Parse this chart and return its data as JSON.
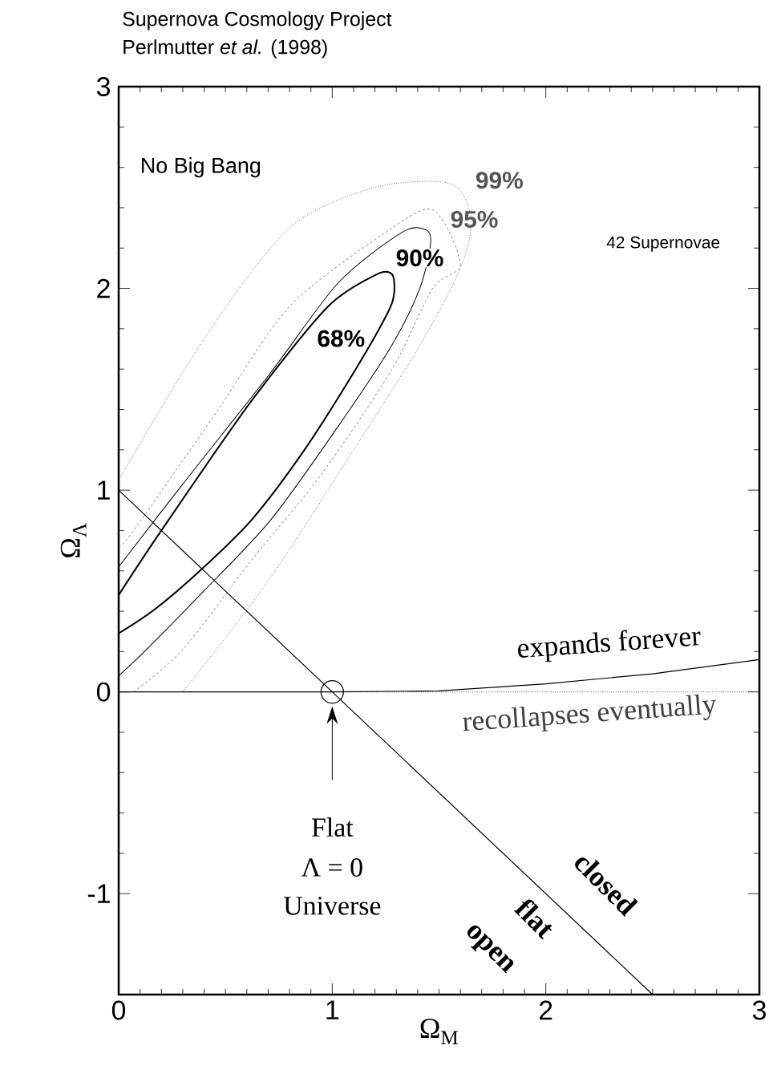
{
  "chart_data": {
    "type": "line",
    "title": "Supernova Cosmology Project",
    "subtitle": "Perlmutter *et al.* (1998)",
    "xlabel": "Ω$_{M}$",
    "ylabel": "Ω$_{Λ}$",
    "xlim": [
      0,
      3
    ],
    "ylim": [
      -1.5,
      3
    ],
    "xticks": [
      0,
      1,
      2,
      3
    ],
    "yticks": [
      -1,
      0,
      1,
      2,
      3
    ],
    "grid": false,
    "series": [
      {
        "name": "68%",
        "color": "#000000",
        "line_style": "solid",
        "x": [
          0,
          0.2,
          0.62,
          0.98,
          1.21,
          1.28,
          1.29,
          1.26,
          1.11,
          0.87,
          0.62,
          0.38,
          0.17,
          0
        ],
        "values": [
          0.48,
          0.8,
          1.44,
          1.91,
          2.07,
          2.07,
          1.98,
          1.88,
          1.6,
          1.2,
          0.85,
          0.6,
          0.41,
          0.29
        ]
      },
      {
        "name": "90%",
        "color": "#000000",
        "line_style": "solid",
        "x": [
          0,
          0.3,
          0.71,
          1.03,
          1.33,
          1.44,
          1.46,
          1.41,
          1.28,
          1.03,
          0.71,
          0.38,
          0.13,
          0
        ],
        "values": [
          0.62,
          1.03,
          1.58,
          2.03,
          2.28,
          2.29,
          2.22,
          2.0,
          1.72,
          1.32,
          0.85,
          0.48,
          0.21,
          0.08
        ]
      },
      {
        "name": "95%",
        "color": "#555555",
        "line_style": "dashed",
        "x": [
          0,
          0.07,
          0.46,
          0.8,
          1.24,
          1.47,
          1.6,
          1.47,
          1.28,
          0.95,
          0.62,
          0.3,
          0.07
        ],
        "values": [
          0.72,
          0.8,
          1.39,
          1.91,
          2.27,
          2.39,
          2.12,
          2.0,
          1.6,
          1.08,
          0.65,
          0.21,
          0
        ]
      },
      {
        "name": "99%",
        "color": "#555555",
        "line_style": "dotted",
        "x": [
          0,
          0.4,
          0.8,
          1.2,
          1.55,
          1.65,
          1.6,
          1.4,
          1.1,
          0.7,
          0.3
        ],
        "values": [
          1.05,
          1.75,
          2.3,
          2.5,
          2.52,
          2.35,
          2.1,
          1.7,
          1.2,
          0.55,
          0
        ]
      },
      {
        "color": "#000000",
        "line_style": "solid",
        "x": [
          0,
          2.5
        ],
        "values": [
          1,
          -1.5
        ]
      },
      {
        "color": "#000000",
        "line_style": "solid",
        "x": [
          0,
          1,
          1.5,
          2,
          2.5,
          3
        ],
        "values": [
          0,
          0,
          0.005,
          0.04,
          0.09,
          0.16
        ]
      },
      {
        "type": "scatter",
        "marker": "circle",
        "color": "#000000",
        "x": [
          1
        ],
        "values": [
          0
        ]
      }
    ],
    "ref_lines": [
      {
        "axis": "y",
        "value": 0,
        "line_style": "dotted",
        "color": "#000000"
      }
    ],
    "annotations": [
      "No Big Bang",
      "42 Supernovae",
      "expands forever",
      "recollapses eventually",
      "closed",
      "flat",
      "open",
      "Flat",
      "Λ = 0",
      "Universe"
    ]
  }
}
